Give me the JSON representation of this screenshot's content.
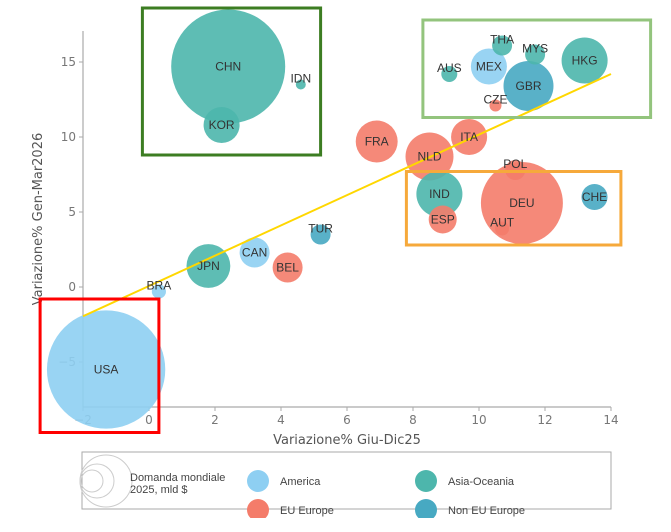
{
  "chart_data": {
    "type": "scatter",
    "subtype": "bubble",
    "xlabel": "Variazione% Giu-Dic25",
    "ylabel": "Variazione% Gen-Mar2026",
    "xlim": [
      -2,
      14
    ],
    "ylim": [
      -8,
      17
    ],
    "x_ticks": [
      -2,
      0,
      2,
      4,
      6,
      8,
      10,
      12,
      14
    ],
    "y_ticks": [
      -5,
      0,
      5,
      10,
      15
    ],
    "grid": false,
    "size_legend_title": [
      "Domanda mondiale",
      "2025, mld $"
    ],
    "groups": [
      {
        "name": "America",
        "color": "#8ecff2"
      },
      {
        "name": "Asia-Oceania",
        "color": "#4db6ac"
      },
      {
        "name": "EU Europe",
        "color": "#f47c6a"
      },
      {
        "name": "Non EU Europe",
        "color": "#47a9c2"
      }
    ],
    "legend_placement": "bottom",
    "points": [
      {
        "label": "USA",
        "group": "America",
        "x": -1.3,
        "y": -5.5,
        "size": 3500
      },
      {
        "label": "BRA",
        "group": "America",
        "x": 0.3,
        "y": -0.3,
        "size": 50
      },
      {
        "label": "CAN",
        "group": "America",
        "x": 3.2,
        "y": 2.3,
        "size": 225
      },
      {
        "label": "MEX",
        "group": "America",
        "x": 10.3,
        "y": 14.7,
        "size": 325
      },
      {
        "label": "CHN",
        "group": "Asia-Oceania",
        "x": 2.4,
        "y": 14.7,
        "size": 3250
      },
      {
        "label": "KOR",
        "group": "Asia-Oceania",
        "x": 2.2,
        "y": 10.8,
        "size": 325
      },
      {
        "label": "IDN",
        "group": "Asia-Oceania",
        "x": 4.6,
        "y": 13.5,
        "size": 25
      },
      {
        "label": "JPN",
        "group": "Asia-Oceania",
        "x": 1.8,
        "y": 1.4,
        "size": 480
      },
      {
        "label": "IND",
        "group": "Asia-Oceania",
        "x": 8.8,
        "y": 6.2,
        "size": 530
      },
      {
        "label": "AUS",
        "group": "Asia-Oceania",
        "x": 9.1,
        "y": 14.2,
        "size": 64
      },
      {
        "label": "THA",
        "group": "Asia-Oceania",
        "x": 10.7,
        "y": 16.1,
        "size": 100
      },
      {
        "label": "MYS",
        "group": "Asia-Oceania",
        "x": 11.7,
        "y": 15.5,
        "size": 100
      },
      {
        "label": "HKG",
        "group": "Asia-Oceania",
        "x": 13.2,
        "y": 15.1,
        "size": 530
      },
      {
        "label": "FRA",
        "group": "EU Europe",
        "x": 6.9,
        "y": 9.7,
        "size": 440
      },
      {
        "label": "NLD",
        "group": "EU Europe",
        "x": 8.5,
        "y": 8.7,
        "size": 575
      },
      {
        "label": "ITA",
        "group": "EU Europe",
        "x": 9.7,
        "y": 10.0,
        "size": 325
      },
      {
        "label": "ESP",
        "group": "EU Europe",
        "x": 8.9,
        "y": 4.5,
        "size": 196
      },
      {
        "label": "BEL",
        "group": "EU Europe",
        "x": 4.2,
        "y": 1.3,
        "size": 225
      },
      {
        "label": "POL",
        "group": "EU Europe",
        "x": 11.1,
        "y": 7.8,
        "size": 100
      },
      {
        "label": "DEU",
        "group": "EU Europe",
        "x": 11.3,
        "y": 5.6,
        "size": 1680
      },
      {
        "label": "AUT",
        "group": "EU Europe",
        "x": 10.7,
        "y": 3.9,
        "size": 49
      },
      {
        "label": "CZE",
        "group": "EU Europe",
        "x": 10.5,
        "y": 12.1,
        "size": 36
      },
      {
        "label": "GBR",
        "group": "Non EU Europe",
        "x": 11.5,
        "y": 13.4,
        "size": 625
      },
      {
        "label": "CHE",
        "group": "Non EU Europe",
        "x": 13.5,
        "y": 6.0,
        "size": 170
      },
      {
        "label": "TUR",
        "group": "Non EU Europe",
        "x": 5.2,
        "y": 3.5,
        "size": 100
      }
    ],
    "trendline": {
      "color": "#ffd700",
      "x": [
        -2,
        14
      ],
      "y": [
        -1.95,
        14.2
      ]
    },
    "highlight_boxes": [
      {
        "name": "asia-highlight",
        "color": "#3c7d22",
        "x": [
          -0.2,
          5.2
        ],
        "y": [
          8.8,
          18.6
        ]
      },
      {
        "name": "top-right-highlight",
        "color": "#93c47d",
        "x": [
          8.3,
          15.2
        ],
        "y": [
          11.3,
          17.8
        ]
      },
      {
        "name": "europe-highlight",
        "color": "#f6a93b",
        "x": [
          7.8,
          14.3
        ],
        "y": [
          2.8,
          7.7
        ]
      },
      {
        "name": "usa-highlight",
        "color": "#ff0000",
        "x": [
          -3.3,
          0.3
        ],
        "y": [
          -9.7,
          -0.8
        ]
      }
    ]
  }
}
